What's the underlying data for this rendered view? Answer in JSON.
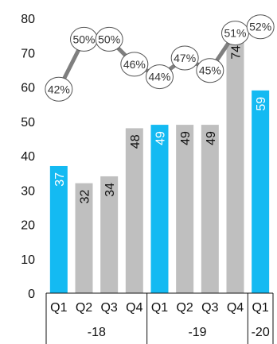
{
  "chart_data": {
    "type": "bar",
    "categories": [
      "Q1",
      "Q2",
      "Q3",
      "Q4",
      "Q1",
      "Q2",
      "Q3",
      "Q4",
      "Q1"
    ],
    "groups": [
      {
        "label": "-18",
        "span": 4
      },
      {
        "label": "-19",
        "span": 4
      },
      {
        "label": "-20",
        "span": 1
      }
    ],
    "values": [
      37,
      32,
      34,
      48,
      49,
      49,
      49,
      74,
      59
    ],
    "value_labels": [
      "37",
      "32",
      "34",
      "48",
      "49",
      "49",
      "49",
      "74",
      "59"
    ],
    "bar_colors": [
      "#14baf2",
      "#bfbfbf",
      "#bfbfbf",
      "#bfbfbf",
      "#14baf2",
      "#bfbfbf",
      "#bfbfbf",
      "#bfbfbf",
      "#14baf2"
    ],
    "label_colors": [
      "#ffffff",
      "#111111",
      "#111111",
      "#111111",
      "#ffffff",
      "#111111",
      "#111111",
      "#111111",
      "#ffffff"
    ],
    "line_series": {
      "labels": [
        "42%",
        "50%",
        "50%",
        "46%",
        "44%",
        "47%",
        "45%",
        "51%",
        "52%"
      ],
      "values": [
        42,
        50,
        50,
        46,
        44,
        47,
        45,
        51,
        52
      ],
      "color": "#7f7f7f"
    },
    "y_ticks": [
      0,
      10,
      20,
      30,
      40,
      50,
      60,
      70,
      80
    ],
    "ylim": [
      0,
      80
    ],
    "grid": false,
    "title": "",
    "xlabel": "",
    "ylabel": ""
  }
}
